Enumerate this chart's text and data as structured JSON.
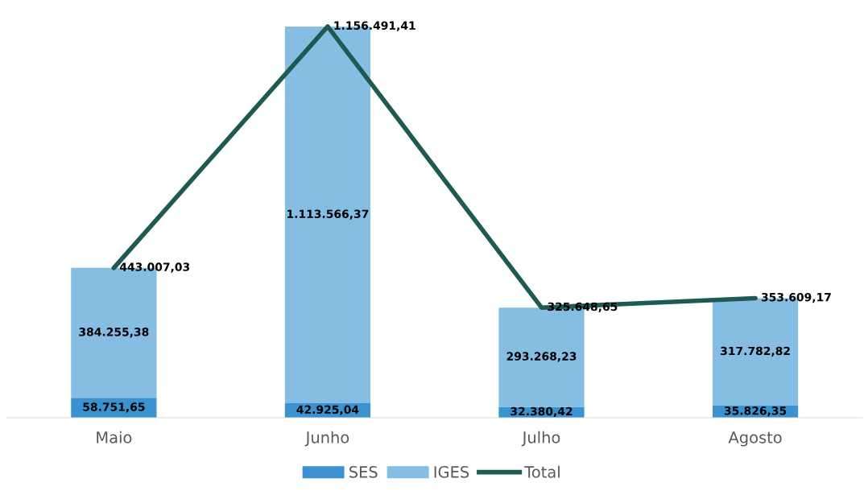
{
  "chart_data": {
    "type": "bar",
    "stacked": true,
    "categories": [
      "Maio",
      "Junho",
      "Julho",
      "Agosto"
    ],
    "series": [
      {
        "name": "SES",
        "color": "#3a93d0",
        "values": [
          58751.65,
          42925.04,
          32380.42,
          35826.35
        ],
        "value_labels": [
          "58.751,65",
          "42.925,04",
          "32.380,42",
          "35.826,35"
        ]
      },
      {
        "name": "IGES",
        "color": "#86bde2",
        "values": [
          384255.38,
          1113566.37,
          293268.23,
          317782.82
        ],
        "value_labels": [
          "384.255,38",
          "1.113.566,37",
          "293.268,23",
          "317.782,82"
        ]
      },
      {
        "name": "Total",
        "type": "line",
        "color": "#1d5a52",
        "values": [
          443007.03,
          1156491.41,
          325648.65,
          353609.17
        ],
        "value_labels": [
          "443.007,03",
          "1.156.491,41",
          "325.648,65",
          "353.609,17"
        ]
      }
    ],
    "legend": "bottom",
    "tick_labels": "x",
    "grid": false
  }
}
